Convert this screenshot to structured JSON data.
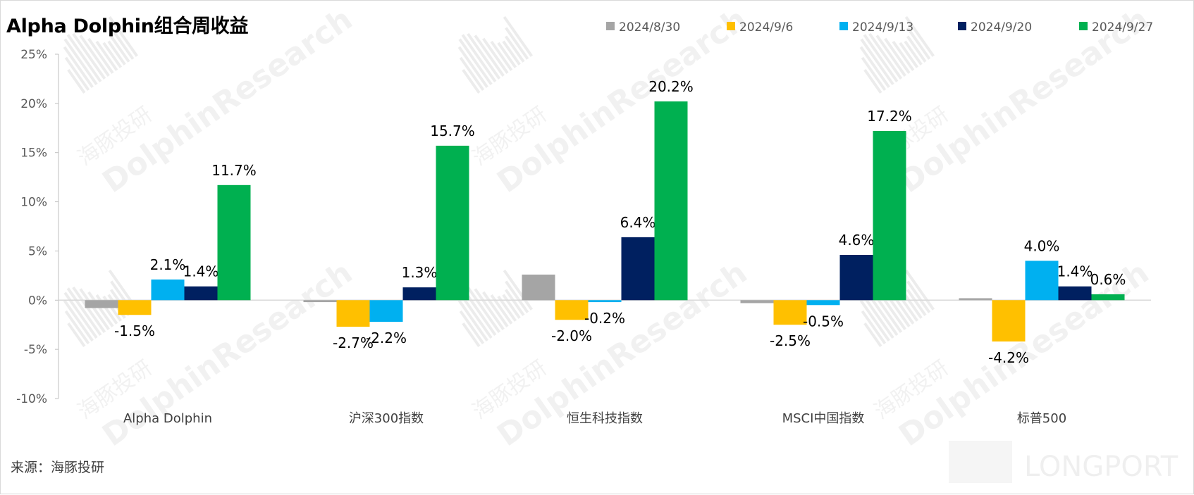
{
  "source_note": "来源：海豚投研",
  "watermark": {
    "cn": "海豚投研",
    "en": "DolphinResearch",
    "brand": "LONGPORT"
  },
  "chart_data": {
    "type": "bar",
    "title": "Alpha Dolphin组合周收益",
    "categories": [
      "Alpha Dolphin",
      "沪深300指数",
      "恒生科技指数",
      "MSCI中国指数",
      "标普500"
    ],
    "series": [
      {
        "name": "2024/8/30",
        "color": "#a5a5a5",
        "values": [
          -0.8,
          -0.2,
          2.6,
          -0.3,
          0.2
        ],
        "labels": [
          "",
          "",
          "",
          "",
          ""
        ]
      },
      {
        "name": "2024/9/6",
        "color": "#ffc000",
        "values": [
          -1.5,
          -2.7,
          -2.0,
          -2.5,
          -4.2
        ],
        "labels": [
          "-1.5%",
          "-2.7%",
          "-2.0%",
          "-2.5%",
          "-4.2%"
        ]
      },
      {
        "name": "2024/9/13",
        "color": "#00b0f0",
        "values": [
          2.1,
          -2.2,
          -0.2,
          -0.5,
          4.0
        ],
        "labels": [
          "2.1%",
          "-2.2%",
          "-0.2%",
          "-0.5%",
          "4.0%"
        ]
      },
      {
        "name": "2024/9/20",
        "color": "#002060",
        "values": [
          1.4,
          1.3,
          6.4,
          4.6,
          1.4
        ],
        "labels": [
          "1.4%",
          "1.3%",
          "6.4%",
          "4.6%",
          "1.4%"
        ]
      },
      {
        "name": "2024/9/27",
        "color": "#00b050",
        "values": [
          11.7,
          15.7,
          20.2,
          17.2,
          0.6
        ],
        "labels": [
          "11.7%",
          "15.7%",
          "20.2%",
          "17.2%",
          "0.6%"
        ]
      }
    ],
    "ylim": [
      -10,
      25
    ],
    "yticks": [
      -10,
      -5,
      0,
      5,
      10,
      15,
      20,
      25
    ],
    "ytick_labels": [
      "-10%",
      "-5%",
      "0%",
      "5%",
      "10%",
      "15%",
      "20%",
      "25%"
    ],
    "legend_position": "top-right",
    "grid": false
  }
}
